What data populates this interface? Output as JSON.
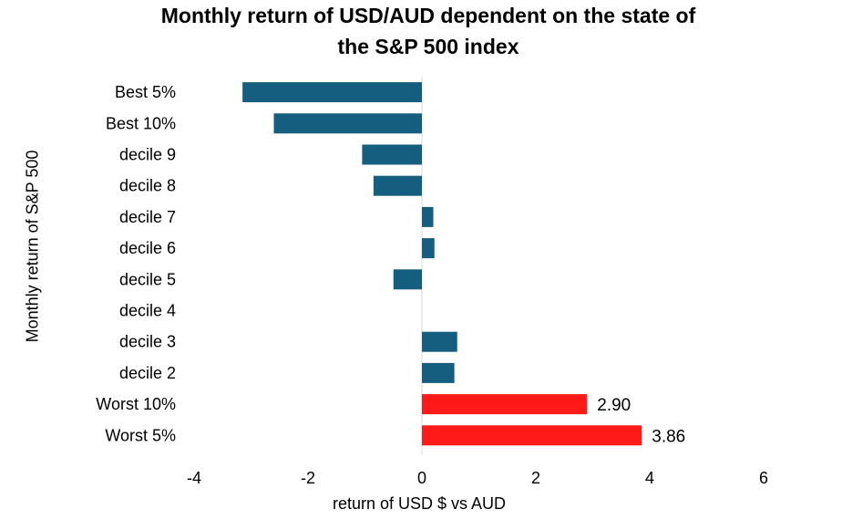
{
  "chart_data": {
    "type": "bar",
    "orientation": "horizontal",
    "title": "Monthly return of USD/AUD dependent on the state of the S&P 500 index",
    "title_lines": [
      "Monthly return of USD/AUD dependent on the state of",
      "the S&P 500 index"
    ],
    "xlabel": "return of USD $ vs AUD",
    "ylabel": "Monthly return of S&P 500",
    "xlim": [
      -4,
      6
    ],
    "xticks": [
      "-4",
      "-2",
      "0",
      "2",
      "4",
      "6"
    ],
    "categories": [
      "Best 5%",
      "Best 10%",
      "decile 9",
      "decile 8",
      "decile 7",
      "decile 6",
      "decile 5",
      "decile 4",
      "decile 3",
      "decile 2",
      "Worst 10%",
      "Worst 5%"
    ],
    "values": [
      -3.15,
      -2.6,
      -1.05,
      -0.85,
      0.2,
      0.22,
      -0.5,
      0.0,
      0.62,
      0.57,
      2.9,
      3.86
    ],
    "data_labels": [
      "",
      "",
      "",
      "",
      "",
      "",
      "",
      "",
      "",
      "",
      "2.90",
      "3.86"
    ],
    "colors": [
      "#155e80",
      "#155e80",
      "#155e80",
      "#155e80",
      "#155e80",
      "#155e80",
      "#155e80",
      "#155e80",
      "#155e80",
      "#155e80",
      "#ff1a1a",
      "#ff1a1a"
    ],
    "grid": false
  }
}
